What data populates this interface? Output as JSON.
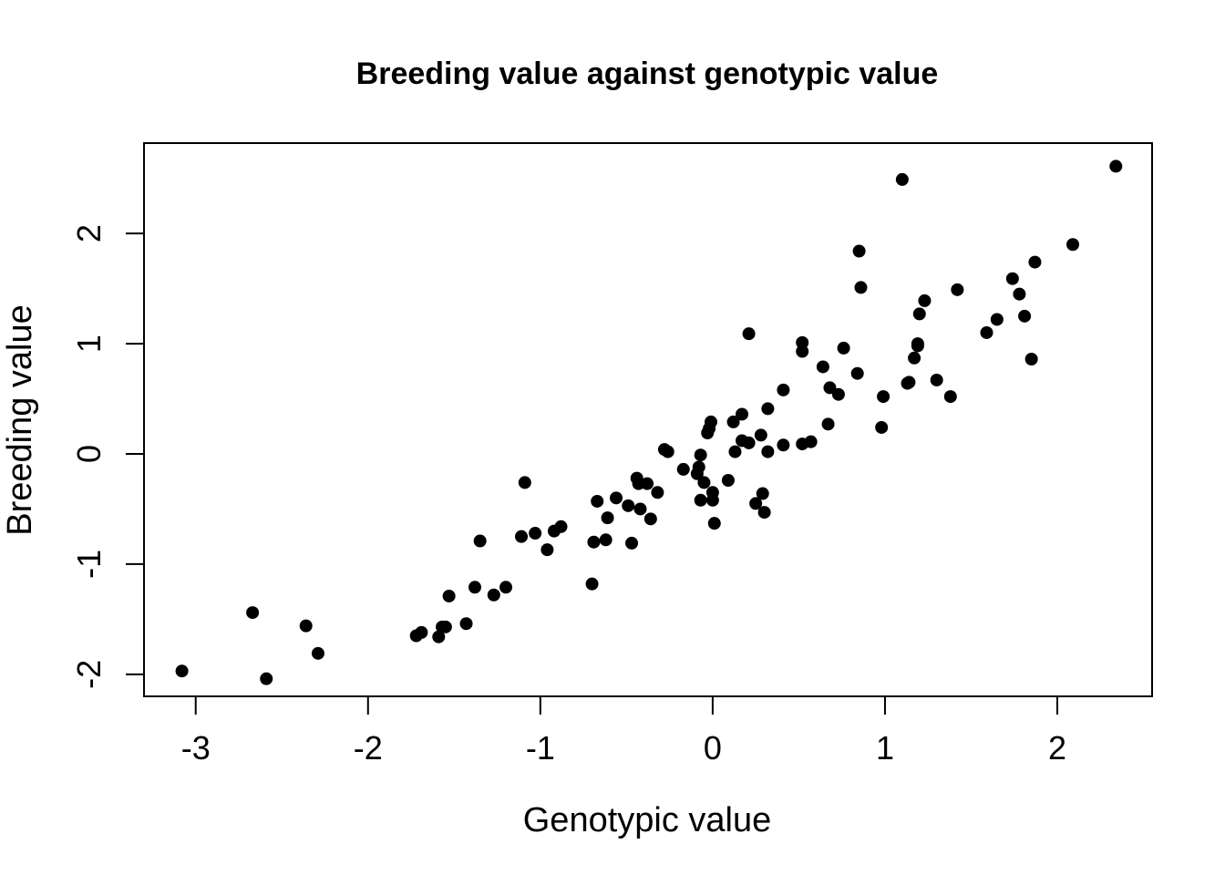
{
  "chart_data": {
    "type": "scatter",
    "title": "Breeding value against genotypic value",
    "xlabel": "Genotypic value",
    "ylabel": "Breeding value",
    "xlim": [
      -3.3,
      2.55
    ],
    "ylim": [
      -2.2,
      2.82
    ],
    "xticks": [
      -3,
      -2,
      -1,
      0,
      1,
      2
    ],
    "xtick_labels": [
      "-3",
      "-2",
      "-1",
      "0",
      "1",
      "2"
    ],
    "yticks": [
      -2,
      -1,
      0,
      1,
      2
    ],
    "ytick_labels": [
      "-2",
      "-1",
      "0",
      "1",
      "2"
    ],
    "grid": false,
    "legend": "none",
    "marker_color": "#000000",
    "points": [
      {
        "x": -3.08,
        "y": -1.97
      },
      {
        "x": -2.67,
        "y": -1.44
      },
      {
        "x": -2.59,
        "y": -2.04
      },
      {
        "x": -2.36,
        "y": -1.56
      },
      {
        "x": -2.29,
        "y": -1.81
      },
      {
        "x": -1.72,
        "y": -1.65
      },
      {
        "x": -1.69,
        "y": -1.62
      },
      {
        "x": -1.59,
        "y": -1.66
      },
      {
        "x": -1.57,
        "y": -1.57
      },
      {
        "x": -1.55,
        "y": -1.57
      },
      {
        "x": -1.53,
        "y": -1.29
      },
      {
        "x": -1.43,
        "y": -1.54
      },
      {
        "x": -1.38,
        "y": -1.21
      },
      {
        "x": -1.35,
        "y": -0.79
      },
      {
        "x": -1.27,
        "y": -1.28
      },
      {
        "x": -1.2,
        "y": -1.21
      },
      {
        "x": -1.11,
        "y": -0.75
      },
      {
        "x": -1.09,
        "y": -0.26
      },
      {
        "x": -1.03,
        "y": -0.72
      },
      {
        "x": -0.96,
        "y": -0.87
      },
      {
        "x": -0.92,
        "y": -0.7
      },
      {
        "x": -0.88,
        "y": -0.66
      },
      {
        "x": -0.7,
        "y": -1.18
      },
      {
        "x": -0.69,
        "y": -0.8
      },
      {
        "x": -0.67,
        "y": -0.43
      },
      {
        "x": -0.62,
        "y": -0.78
      },
      {
        "x": -0.61,
        "y": -0.58
      },
      {
        "x": -0.56,
        "y": -0.4
      },
      {
        "x": -0.49,
        "y": -0.47
      },
      {
        "x": -0.47,
        "y": -0.81
      },
      {
        "x": -0.44,
        "y": -0.22
      },
      {
        "x": -0.43,
        "y": -0.27
      },
      {
        "x": -0.42,
        "y": -0.5
      },
      {
        "x": -0.38,
        "y": -0.27
      },
      {
        "x": -0.36,
        "y": -0.59
      },
      {
        "x": -0.32,
        "y": -0.35
      },
      {
        "x": -0.28,
        "y": 0.04
      },
      {
        "x": -0.26,
        "y": 0.02
      },
      {
        "x": -0.17,
        "y": -0.14
      },
      {
        "x": -0.09,
        "y": -0.18
      },
      {
        "x": -0.08,
        "y": -0.12
      },
      {
        "x": -0.07,
        "y": -0.01
      },
      {
        "x": -0.07,
        "y": -0.42
      },
      {
        "x": -0.05,
        "y": -0.26
      },
      {
        "x": -0.03,
        "y": 0.19
      },
      {
        "x": -0.02,
        "y": 0.23
      },
      {
        "x": -0.01,
        "y": 0.29
      },
      {
        "x": 0.0,
        "y": -0.35
      },
      {
        "x": 0.0,
        "y": -0.42
      },
      {
        "x": 0.01,
        "y": -0.63
      },
      {
        "x": 0.09,
        "y": -0.24
      },
      {
        "x": 0.12,
        "y": 0.29
      },
      {
        "x": 0.13,
        "y": 0.02
      },
      {
        "x": 0.17,
        "y": 0.36
      },
      {
        "x": 0.17,
        "y": 0.12
      },
      {
        "x": 0.21,
        "y": 0.1
      },
      {
        "x": 0.21,
        "y": 1.09
      },
      {
        "x": 0.25,
        "y": -0.45
      },
      {
        "x": 0.28,
        "y": 0.17
      },
      {
        "x": 0.29,
        "y": -0.36
      },
      {
        "x": 0.3,
        "y": -0.53
      },
      {
        "x": 0.32,
        "y": 0.41
      },
      {
        "x": 0.32,
        "y": 0.02
      },
      {
        "x": 0.41,
        "y": 0.08
      },
      {
        "x": 0.41,
        "y": 0.58
      },
      {
        "x": 0.52,
        "y": 1.01
      },
      {
        "x": 0.52,
        "y": 0.93
      },
      {
        "x": 0.52,
        "y": 0.09
      },
      {
        "x": 0.57,
        "y": 0.11
      },
      {
        "x": 0.64,
        "y": 0.79
      },
      {
        "x": 0.67,
        "y": 0.27
      },
      {
        "x": 0.68,
        "y": 0.6
      },
      {
        "x": 0.73,
        "y": 0.54
      },
      {
        "x": 0.76,
        "y": 0.96
      },
      {
        "x": 0.84,
        "y": 0.73
      },
      {
        "x": 0.85,
        "y": 1.84
      },
      {
        "x": 0.86,
        "y": 1.51
      },
      {
        "x": 0.98,
        "y": 0.24
      },
      {
        "x": 0.99,
        "y": 0.52
      },
      {
        "x": 1.1,
        "y": 2.49
      },
      {
        "x": 1.13,
        "y": 0.64
      },
      {
        "x": 1.14,
        "y": 0.65
      },
      {
        "x": 1.17,
        "y": 0.87
      },
      {
        "x": 1.19,
        "y": 0.98
      },
      {
        "x": 1.19,
        "y": 1.0
      },
      {
        "x": 1.2,
        "y": 1.27
      },
      {
        "x": 1.23,
        "y": 1.39
      },
      {
        "x": 1.3,
        "y": 0.67
      },
      {
        "x": 1.38,
        "y": 0.52
      },
      {
        "x": 1.42,
        "y": 1.49
      },
      {
        "x": 1.59,
        "y": 1.1
      },
      {
        "x": 1.65,
        "y": 1.22
      },
      {
        "x": 1.74,
        "y": 1.59
      },
      {
        "x": 1.78,
        "y": 1.45
      },
      {
        "x": 1.81,
        "y": 1.25
      },
      {
        "x": 1.85,
        "y": 0.86
      },
      {
        "x": 1.87,
        "y": 1.74
      },
      {
        "x": 2.09,
        "y": 1.9
      },
      {
        "x": 2.34,
        "y": 2.61
      }
    ]
  }
}
